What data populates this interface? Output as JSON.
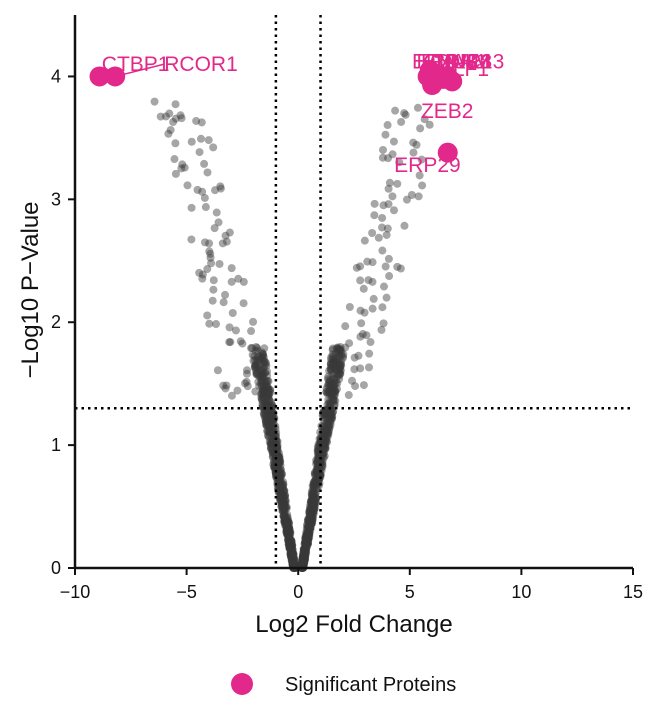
{
  "chart_data": {
    "type": "scatter",
    "xlabel": "Log2 Fold Change",
    "ylabel": "−Log10 P−Value",
    "xlim": [
      -10,
      15
    ],
    "ylim": [
      0,
      4.5
    ],
    "xticks": [
      -10,
      -5,
      0,
      5,
      10,
      15
    ],
    "xtick_labels": [
      "−10",
      "−5",
      "0",
      "5",
      "10",
      "15"
    ],
    "yticks": [
      0,
      1,
      2,
      3,
      4
    ],
    "ytick_labels": [
      "0",
      "1",
      "2",
      "3",
      "4"
    ],
    "thresholds": {
      "log2fc": [
        -1,
        1
      ],
      "neg_log10_p": 1.3
    },
    "colors": {
      "background": "#3a3a3a",
      "significant": "#e3288c",
      "threshold_line": "#000000"
    },
    "legend": {
      "position": "bottom-center",
      "entries": [
        {
          "label": "Significant Proteins",
          "color": "#e3288c"
        }
      ]
    },
    "series": [
      {
        "name": "Significant Proteins",
        "points": [
          {
            "x": -8.9,
            "y": 4.0,
            "label": "CTBP1"
          },
          {
            "x": -8.2,
            "y": 4.0,
            "label": "RCOR1"
          },
          {
            "x": 5.8,
            "y": 4.0,
            "label": "EDA"
          },
          {
            "x": 5.9,
            "y": 4.05,
            "label": "CDH1"
          },
          {
            "x": 6.1,
            "y": 4.02,
            "label": "NUP13"
          },
          {
            "x": 6.3,
            "y": 4.0,
            "label": "CLN3"
          },
          {
            "x": 6.5,
            "y": 3.98,
            "label": "HDAC8"
          },
          {
            "x": 6.7,
            "y": 4.0,
            "label": "EPCAM"
          },
          {
            "x": 6.9,
            "y": 3.96,
            "label": "KLF1"
          },
          {
            "x": 6.0,
            "y": 3.93,
            "label": "ZEB2"
          },
          {
            "x": 6.7,
            "y": 3.38,
            "label": "ERP29"
          }
        ]
      }
    ],
    "annotations": [
      {
        "text": "CTBP1",
        "x": -8.8,
        "y": 4.1
      },
      {
        "text": "RCOR1",
        "x": -6.0,
        "y": 4.1
      },
      {
        "text": "EDA",
        "x": 5.1,
        "y": 4.12
      },
      {
        "text": "CDH1",
        "x": 5.9,
        "y": 4.12
      },
      {
        "text": "NUP13",
        "x": 6.2,
        "y": 4.12
      },
      {
        "text": "CLN3",
        "x": 5.6,
        "y": 4.12
      },
      {
        "text": "HDAC8",
        "x": 5.5,
        "y": 4.12
      },
      {
        "text": "EPCAM",
        "x": 5.3,
        "y": 4.12
      },
      {
        "text": "KLF1",
        "x": 6.3,
        "y": 4.06
      },
      {
        "text": "ZEB2",
        "x": 5.5,
        "y": 3.72
      },
      {
        "text": "ERP29",
        "x": 4.3,
        "y": 3.28
      }
    ]
  }
}
